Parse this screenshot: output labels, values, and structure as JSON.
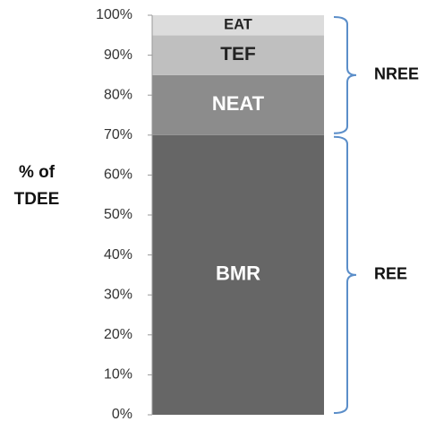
{
  "chart_data": {
    "type": "stacked_bar",
    "y_label": "% of TDEE",
    "categories": [
      null
    ],
    "series": [
      {
        "name": "BMR",
        "color": "#666666",
        "label_color": "#ffffff",
        "values": [
          70
        ]
      },
      {
        "name": "NEAT",
        "color": "#8c8c8c",
        "label_color": "#ffffff",
        "values": [
          15
        ]
      },
      {
        "name": "TEF",
        "color": "#bfbfbf",
        "label_color": "#222222",
        "values": [
          10
        ]
      },
      {
        "name": "EAT",
        "color": "#dcdcdc",
        "label_color": "#222222",
        "values": [
          5
        ]
      }
    ],
    "ylim": [
      0,
      100
    ],
    "yticks": [
      {
        "value": 0,
        "label": "0%"
      },
      {
        "value": 10,
        "label": "10%"
      },
      {
        "value": 20,
        "label": "20%"
      },
      {
        "value": 30,
        "label": "30%"
      },
      {
        "value": 40,
        "label": "40%"
      },
      {
        "value": 50,
        "label": "50%"
      },
      {
        "value": 60,
        "label": "60%"
      },
      {
        "value": 70,
        "label": "70%"
      },
      {
        "value": 80,
        "label": "80%"
      },
      {
        "value": 90,
        "label": "90%"
      },
      {
        "value": 100,
        "label": "100%"
      }
    ],
    "annotations": [
      {
        "text": "REE"
      },
      {
        "text": "NREE"
      }
    ],
    "annotation_color": "#5b8ec9"
  }
}
